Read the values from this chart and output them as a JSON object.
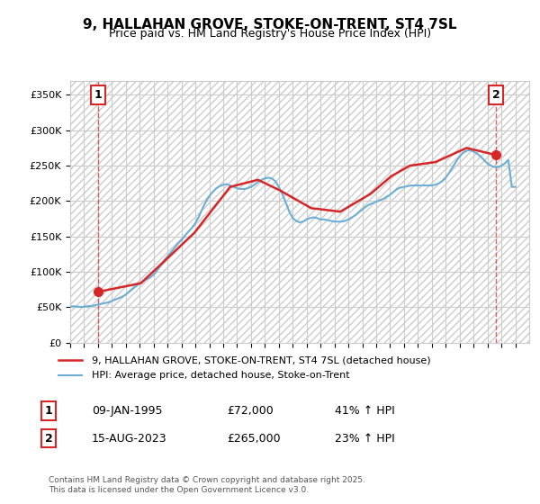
{
  "title": "9, HALLAHAN GROVE, STOKE-ON-TRENT, ST4 7SL",
  "subtitle": "Price paid vs. HM Land Registry's House Price Index (HPI)",
  "ylim": [
    0,
    370000
  ],
  "yticks": [
    0,
    50000,
    100000,
    150000,
    200000,
    250000,
    300000,
    350000
  ],
  "ytick_labels": [
    "£0",
    "£50K",
    "£100K",
    "£150K",
    "£200K",
    "£250K",
    "£300K",
    "£350K"
  ],
  "xlim_start": 1993,
  "xlim_end": 2026,
  "hpi_color": "#6baed6",
  "price_color": "#d62728",
  "marker1_date": 1995.03,
  "marker1_price": 72000,
  "marker2_date": 2023.62,
  "marker2_price": 265000,
  "legend_line1": "9, HALLAHAN GROVE, STOKE-ON-TRENT, ST4 7SL (detached house)",
  "legend_line2": "HPI: Average price, detached house, Stoke-on-Trent",
  "annotation1_label": "1",
  "annotation1_date": "09-JAN-1995",
  "annotation1_price": "£72,000",
  "annotation1_hpi": "41% ↑ HPI",
  "annotation2_label": "2",
  "annotation2_date": "15-AUG-2023",
  "annotation2_price": "£265,000",
  "annotation2_hpi": "23% ↑ HPI",
  "footer": "Contains HM Land Registry data © Crown copyright and database right 2025.\nThis data is licensed under the Open Government Licence v3.0.",
  "background_color": "#ffffff",
  "hatch_color": "#cccccc",
  "grid_color": "#cccccc",
  "hpi_data_x": [
    1993.0,
    1993.25,
    1993.5,
    1993.75,
    1994.0,
    1994.25,
    1994.5,
    1994.75,
    1995.0,
    1995.25,
    1995.5,
    1995.75,
    1996.0,
    1996.25,
    1996.5,
    1996.75,
    1997.0,
    1997.25,
    1997.5,
    1997.75,
    1998.0,
    1998.25,
    1998.5,
    1998.75,
    1999.0,
    1999.25,
    1999.5,
    1999.75,
    2000.0,
    2000.25,
    2000.5,
    2000.75,
    2001.0,
    2001.25,
    2001.5,
    2001.75,
    2002.0,
    2002.25,
    2002.5,
    2002.75,
    2003.0,
    2003.25,
    2003.5,
    2003.75,
    2004.0,
    2004.25,
    2004.5,
    2004.75,
    2005.0,
    2005.25,
    2005.5,
    2005.75,
    2006.0,
    2006.25,
    2006.5,
    2006.75,
    2007.0,
    2007.25,
    2007.5,
    2007.75,
    2008.0,
    2008.25,
    2008.5,
    2008.75,
    2009.0,
    2009.25,
    2009.5,
    2009.75,
    2010.0,
    2010.25,
    2010.5,
    2010.75,
    2011.0,
    2011.25,
    2011.5,
    2011.75,
    2012.0,
    2012.25,
    2012.5,
    2012.75,
    2013.0,
    2013.25,
    2013.5,
    2013.75,
    2014.0,
    2014.25,
    2014.5,
    2014.75,
    2015.0,
    2015.25,
    2015.5,
    2015.75,
    2016.0,
    2016.25,
    2016.5,
    2016.75,
    2017.0,
    2017.25,
    2017.5,
    2017.75,
    2018.0,
    2018.25,
    2018.5,
    2018.75,
    2019.0,
    2019.25,
    2019.5,
    2019.75,
    2020.0,
    2020.25,
    2020.5,
    2020.75,
    2021.0,
    2021.25,
    2021.5,
    2021.75,
    2022.0,
    2022.25,
    2022.5,
    2022.75,
    2023.0,
    2023.25,
    2023.5,
    2023.75,
    2024.0,
    2024.25,
    2024.5,
    2024.75,
    2025.0
  ],
  "hpi_data_y": [
    51000,
    51500,
    51000,
    50500,
    51000,
    51500,
    52000,
    52500,
    54000,
    55000,
    56000,
    57000,
    59000,
    61000,
    63000,
    65000,
    68000,
    72000,
    76000,
    80000,
    84000,
    87000,
    90000,
    92000,
    96000,
    102000,
    109000,
    116000,
    122000,
    128000,
    134000,
    140000,
    145000,
    151000,
    157000,
    162000,
    169000,
    178000,
    189000,
    199000,
    207000,
    213000,
    218000,
    221000,
    223000,
    224000,
    222000,
    220000,
    218000,
    217000,
    217000,
    218000,
    220000,
    223000,
    227000,
    230000,
    232000,
    233000,
    232000,
    228000,
    220000,
    210000,
    198000,
    185000,
    176000,
    172000,
    170000,
    171000,
    174000,
    176000,
    177000,
    176000,
    174000,
    174000,
    173000,
    172000,
    171000,
    171000,
    171000,
    172000,
    174000,
    177000,
    180000,
    184000,
    188000,
    192000,
    195000,
    197000,
    199000,
    201000,
    203000,
    206000,
    209000,
    213000,
    217000,
    219000,
    220000,
    221000,
    222000,
    222000,
    222000,
    222000,
    222000,
    222000,
    222000,
    223000,
    225000,
    228000,
    233000,
    240000,
    248000,
    256000,
    263000,
    268000,
    271000,
    272000,
    270000,
    267000,
    263000,
    258000,
    253000,
    250000,
    248000,
    248000,
    250000,
    253000,
    258000,
    220000,
    220000
  ],
  "price_data_x": [
    1995.03,
    1998.08,
    2001.92,
    2004.5,
    2006.5,
    2008.08,
    2010.33,
    2012.42,
    2014.58,
    2016.08,
    2017.42,
    2019.25,
    2021.5,
    2023.62
  ],
  "price_data_y": [
    72000,
    84000,
    155000,
    220000,
    230000,
    215000,
    190000,
    185000,
    210000,
    235000,
    250000,
    255000,
    275000,
    265000
  ]
}
